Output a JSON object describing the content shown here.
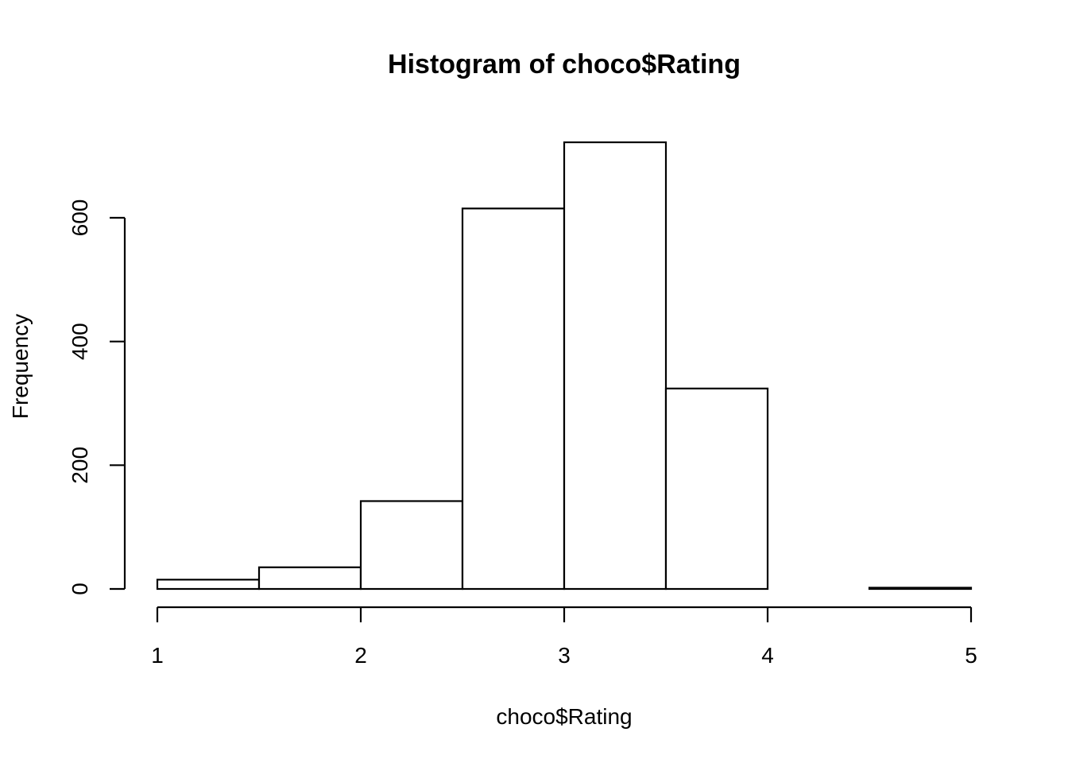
{
  "chart_data": {
    "type": "bar",
    "subtype": "histogram",
    "title": "Histogram of choco$Rating",
    "xlabel": "choco$Rating",
    "ylabel": "Frequency",
    "bins": [
      {
        "start": 1.0,
        "end": 1.5,
        "count": 15
      },
      {
        "start": 1.5,
        "end": 2.0,
        "count": 35
      },
      {
        "start": 2.0,
        "end": 2.5,
        "count": 142
      },
      {
        "start": 2.5,
        "end": 3.0,
        "count": 615
      },
      {
        "start": 3.0,
        "end": 3.5,
        "count": 722
      },
      {
        "start": 3.5,
        "end": 4.0,
        "count": 324
      },
      {
        "start": 4.0,
        "end": 4.5,
        "count": 0
      },
      {
        "start": 4.5,
        "end": 5.0,
        "count": 2
      }
    ],
    "xlim": [
      1,
      5
    ],
    "ylim": [
      0,
      722
    ],
    "x_ticks": [
      "1",
      "2",
      "3",
      "4",
      "5"
    ],
    "y_ticks": [
      "0",
      "200",
      "400",
      "600"
    ],
    "grid": false,
    "legend": "none",
    "colors": {
      "bar_fill": "#ffffff",
      "bar_stroke": "#000000",
      "background": "#ffffff"
    }
  }
}
